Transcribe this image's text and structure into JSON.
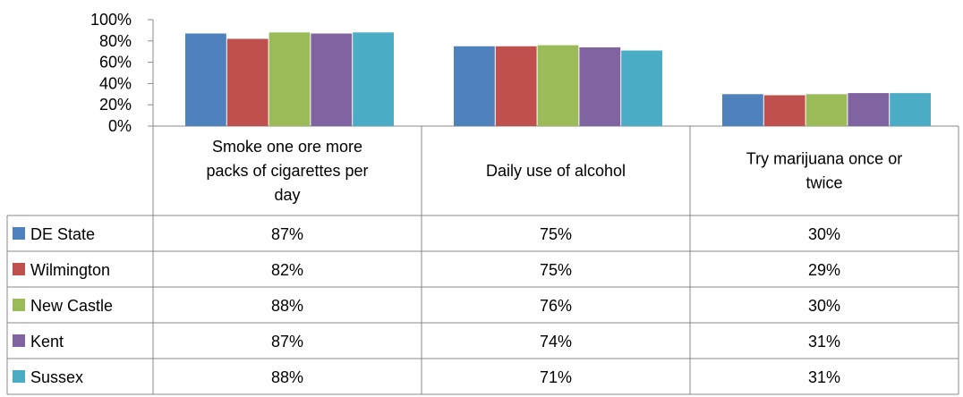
{
  "chart_data": {
    "type": "bar",
    "ylim": [
      0,
      100
    ],
    "y_ticks": [
      "0%",
      "20%",
      "40%",
      "60%",
      "80%",
      "100%"
    ],
    "y_tick_values": [
      0,
      20,
      40,
      60,
      80,
      100
    ],
    "categories": [
      [
        "Smoke one ore more",
        "packs of cigarettes per",
        "day"
      ],
      [
        "Daily use of alcohol"
      ],
      [
        "Try marijuana once or",
        "twice"
      ]
    ],
    "series": [
      {
        "name": "DE State",
        "color": "#4F81BD",
        "values": [
          87,
          75,
          30
        ],
        "labels": [
          "87%",
          "75%",
          "30%"
        ]
      },
      {
        "name": "Wilmington",
        "color": "#C0504D",
        "values": [
          82,
          75,
          29
        ],
        "labels": [
          "82%",
          "75%",
          "29%"
        ]
      },
      {
        "name": "New Castle",
        "color": "#9BBB59",
        "values": [
          88,
          76,
          30
        ],
        "labels": [
          "88%",
          "76%",
          "30%"
        ]
      },
      {
        "name": "Kent",
        "color": "#8064A2",
        "values": [
          87,
          74,
          31
        ],
        "labels": [
          "87%",
          "74%",
          "31%"
        ]
      },
      {
        "name": "Sussex",
        "color": "#4BACC6",
        "values": [
          88,
          71,
          31
        ],
        "labels": [
          "88%",
          "71%",
          "31%"
        ]
      }
    ],
    "data_table": true,
    "grid": false
  }
}
